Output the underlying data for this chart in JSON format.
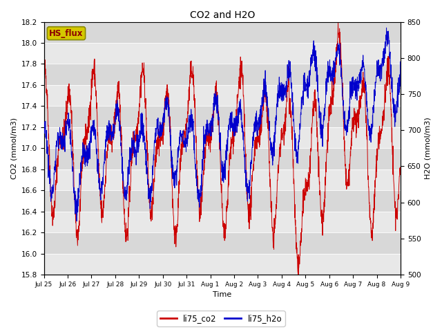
{
  "title": "CO2 and H2O",
  "xlabel": "Time",
  "ylabel_left": "CO2 (mmol/m3)",
  "ylabel_right": "H2O (mmol/m3)",
  "ylim_left": [
    15.8,
    18.2
  ],
  "ylim_right": [
    500,
    850
  ],
  "yticks_left": [
    15.8,
    16.0,
    16.2,
    16.4,
    16.6,
    16.8,
    17.0,
    17.2,
    17.4,
    17.6,
    17.8,
    18.0,
    18.2
  ],
  "yticks_right": [
    500,
    550,
    600,
    650,
    700,
    750,
    800,
    850
  ],
  "xtick_labels": [
    "Jul 25",
    "Jul 26",
    "Jul 27",
    "Jul 28",
    "Jul 29",
    "Jul 30",
    "Jul 31",
    "Aug 1",
    "Aug 2",
    "Aug 3",
    "Aug 4",
    "Aug 5",
    "Aug 6",
    "Aug 7",
    "Aug 8",
    "Aug 9"
  ],
  "color_co2": "#cc0000",
  "color_h2o": "#0000cc",
  "legend_label_co2": "li75_co2",
  "legend_label_h2o": "li75_h2o",
  "plot_bg_color": "#e8e8e8",
  "band_color_light": "#e8e8e8",
  "band_color_dark": "#d8d8d8",
  "annotation_text": "HS_flux",
  "annotation_bg": "#d4c800",
  "annotation_border": "#888800",
  "n_points": 2000,
  "seed": 42
}
